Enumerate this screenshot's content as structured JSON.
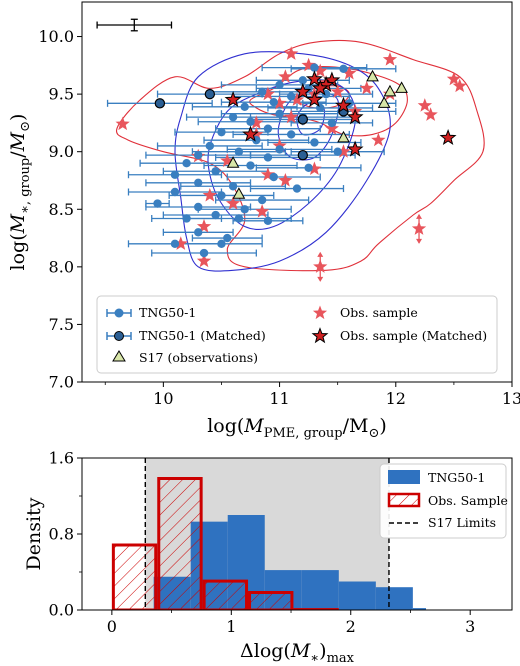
{
  "chart_data": [
    {
      "type": "scatter",
      "xlabel": "log(M_PME,group/M☉)",
      "ylabel": "log(M*,group/M☉)",
      "xlim": [
        9.3,
        13.0
      ],
      "ylim": [
        7.0,
        10.3
      ],
      "xticks": [
        "10",
        "11",
        "12",
        "13"
      ],
      "yticks": [
        "7.0",
        "7.5",
        "8.0",
        "8.5",
        "9.0",
        "9.5",
        "10.0"
      ],
      "legend": {
        "placement": "lower-center",
        "entries": [
          "TNG50-1",
          "TNG50-1 (Matched)",
          "S17 (observations)",
          "Obs. sample",
          "Obs. sample (Matched)"
        ]
      },
      "colors": {
        "tng": "#3a7fc0",
        "obs": "#e8555c",
        "matched_edge": "#000000",
        "s17": "#d8e6a8",
        "contour_red": "#e0303a",
        "contour_blue": "#3030d0"
      },
      "typical_error": {
        "x": 9.75,
        "y": 10.1,
        "xerr": 0.32,
        "yerr": 0.05
      },
      "series": [
        {
          "name": "TNG50-1",
          "points": [
            [
              11.3,
              9.73,
              0.45
            ],
            [
              11.55,
              9.72,
              0.45
            ],
            [
              11.2,
              9.62,
              0.4
            ],
            [
              11.0,
              9.58,
              0.5
            ],
            [
              11.25,
              9.55,
              0.45
            ],
            [
              10.85,
              9.52,
              0.45
            ],
            [
              11.4,
              9.5,
              0.4
            ],
            [
              11.1,
              9.48,
              0.5
            ],
            [
              10.95,
              9.43,
              0.45
            ],
            [
              11.6,
              9.42,
              0.4
            ],
            [
              10.7,
              9.39,
              0.45
            ],
            [
              11.35,
              9.38,
              0.45
            ],
            [
              11.0,
              9.33,
              0.5
            ],
            [
              10.6,
              9.3,
              0.4
            ],
            [
              11.2,
              9.3,
              0.45
            ],
            [
              10.75,
              9.26,
              0.45
            ],
            [
              11.45,
              9.25,
              0.35
            ],
            [
              10.9,
              9.2,
              0.45
            ],
            [
              10.5,
              9.17,
              0.4
            ],
            [
              11.1,
              9.15,
              0.5
            ],
            [
              10.8,
              9.1,
              0.45
            ],
            [
              11.3,
              9.08,
              0.4
            ],
            [
              10.4,
              9.05,
              0.45
            ],
            [
              11.0,
              9.02,
              0.45
            ],
            [
              10.65,
              9.0,
              0.4
            ],
            [
              11.5,
              9.0,
              0.4
            ],
            [
              10.3,
              8.97,
              0.45
            ],
            [
              10.9,
              8.95,
              0.45
            ],
            [
              10.2,
              8.9,
              0.4
            ],
            [
              10.75,
              8.88,
              0.4
            ],
            [
              11.25,
              8.86,
              0.45
            ],
            [
              10.45,
              8.83,
              0.45
            ],
            [
              10.1,
              8.8,
              0.4
            ],
            [
              10.95,
              8.78,
              0.4
            ],
            [
              10.3,
              8.73,
              0.45
            ],
            [
              10.6,
              8.7,
              0.45
            ],
            [
              11.15,
              8.68,
              0.4
            ],
            [
              10.1,
              8.65,
              0.4
            ],
            [
              10.5,
              8.62,
              0.45
            ],
            [
              10.85,
              8.58,
              0.4
            ],
            [
              9.95,
              8.55,
              0.1
            ],
            [
              10.3,
              8.52,
              0.45
            ],
            [
              10.7,
              8.5,
              0.4
            ],
            [
              10.45,
              8.45,
              0.45
            ],
            [
              10.2,
              8.42,
              0.3
            ],
            [
              10.65,
              8.42,
              0.45
            ],
            [
              10.9,
              8.4,
              0.3
            ],
            [
              10.3,
              8.3,
              0.3
            ],
            [
              10.55,
              8.25,
              0.3
            ],
            [
              10.1,
              8.2,
              0.4
            ],
            [
              10.5,
              8.2,
              0.35
            ],
            [
              10.35,
              8.12,
              0.45
            ]
          ]
        },
        {
          "name": "TNG50-1 (Matched)",
          "points": [
            [
              10.4,
              9.5,
              0.45
            ],
            [
              9.97,
              9.42,
              0.45
            ],
            [
              11.55,
              9.35,
              0.45
            ],
            [
              11.2,
              9.28,
              0.45
            ],
            [
              11.2,
              8.97,
              0.45
            ]
          ]
        },
        {
          "name": "S17 (observations)",
          "points": [
            [
              11.8,
              9.65
            ],
            [
              12.05,
              9.55
            ],
            [
              11.95,
              9.52
            ],
            [
              11.9,
              9.42
            ],
            [
              11.55,
              9.12
            ],
            [
              10.6,
              8.9
            ],
            [
              10.65,
              8.63
            ]
          ]
        },
        {
          "name": "Obs. sample",
          "points": [
            [
              11.1,
              9.85
            ],
            [
              11.95,
              9.8
            ],
            [
              11.25,
              9.75
            ],
            [
              11.35,
              9.7
            ],
            [
              11.6,
              9.68
            ],
            [
              11.05,
              9.65
            ],
            [
              12.5,
              9.63
            ],
            [
              12.55,
              9.57
            ],
            [
              11.4,
              9.6
            ],
            [
              11.75,
              9.55
            ],
            [
              11.5,
              9.52
            ],
            [
              10.9,
              9.5
            ],
            [
              11.3,
              9.5
            ],
            [
              11.95,
              9.5
            ],
            [
              11.15,
              9.45
            ],
            [
              11.0,
              9.42
            ],
            [
              12.25,
              9.4
            ],
            [
              11.55,
              9.4
            ],
            [
              11.65,
              9.35
            ],
            [
              12.3,
              9.32
            ],
            [
              11.1,
              9.3
            ],
            [
              10.8,
              9.25
            ],
            [
              9.65,
              9.24
            ],
            [
              11.45,
              9.2
            ],
            [
              10.8,
              9.15
            ],
            [
              11.85,
              9.1
            ],
            [
              11.0,
              9.05
            ],
            [
              11.55,
              9.0
            ],
            [
              10.3,
              8.96
            ],
            [
              10.55,
              8.92
            ],
            [
              11.3,
              8.85
            ],
            [
              10.9,
              8.8
            ],
            [
              11.05,
              8.75
            ],
            [
              10.4,
              8.62
            ],
            [
              10.6,
              8.55
            ],
            [
              10.85,
              8.48
            ],
            [
              10.35,
              8.35
            ],
            [
              10.15,
              8.2
            ],
            [
              10.35,
              8.05
            ]
          ]
        },
        {
          "name": "Obs. sample (Matched)",
          "points": [
            [
              11.3,
              9.63
            ],
            [
              11.45,
              9.62
            ],
            [
              11.4,
              9.58
            ],
            [
              11.35,
              9.55
            ],
            [
              11.2,
              9.52
            ],
            [
              10.6,
              9.45
            ],
            [
              11.3,
              9.45
            ],
            [
              11.55,
              9.4
            ],
            [
              11.65,
              9.3
            ],
            [
              10.75,
              9.15
            ],
            [
              11.65,
              9.02
            ],
            [
              12.45,
              9.12
            ]
          ]
        },
        {
          "name": "Obs. sample upper limits",
          "points": [
            [
              12.2,
              8.33
            ],
            [
              11.35,
              8.0
            ]
          ]
        }
      ],
      "contours": [
        {
          "color": "red",
          "points": [
            [
              9.6,
              9.2
            ],
            [
              9.8,
              9.45
            ],
            [
              10.1,
              9.65
            ],
            [
              10.4,
              9.55
            ],
            [
              10.7,
              9.65
            ],
            [
              11.0,
              9.85
            ],
            [
              11.3,
              9.95
            ],
            [
              11.7,
              9.95
            ],
            [
              12.15,
              9.8
            ],
            [
              12.55,
              9.65
            ],
            [
              12.7,
              9.35
            ],
            [
              12.75,
              9.0
            ],
            [
              12.5,
              8.75
            ],
            [
              12.3,
              8.55
            ],
            [
              12.15,
              8.45
            ],
            [
              11.85,
              8.2
            ],
            [
              11.7,
              8.05
            ],
            [
              11.4,
              7.97
            ],
            [
              10.7,
              8.0
            ],
            [
              10.55,
              8.15
            ],
            [
              10.7,
              8.4
            ],
            [
              10.6,
              8.7
            ],
            [
              10.4,
              8.9
            ],
            [
              10.0,
              9.0
            ],
            [
              9.7,
              9.1
            ]
          ]
        },
        {
          "color": "red",
          "points": [
            [
              10.75,
              9.45
            ],
            [
              10.95,
              9.55
            ],
            [
              11.2,
              9.72
            ],
            [
              11.6,
              9.72
            ],
            [
              12.0,
              9.6
            ],
            [
              12.1,
              9.45
            ],
            [
              12.0,
              9.25
            ],
            [
              11.8,
              9.15
            ],
            [
              11.55,
              9.15
            ],
            [
              11.35,
              9.25
            ],
            [
              11.15,
              9.3
            ],
            [
              10.95,
              9.32
            ],
            [
              10.8,
              9.38
            ]
          ]
        },
        {
          "color": "red",
          "points": [
            [
              11.15,
              9.45
            ],
            [
              11.3,
              9.55
            ],
            [
              11.5,
              9.57
            ],
            [
              11.6,
              9.5
            ],
            [
              11.5,
              9.4
            ],
            [
              11.3,
              9.38
            ]
          ]
        },
        {
          "color": "blue",
          "points": [
            [
              10.15,
              9.3
            ],
            [
              10.3,
              9.65
            ],
            [
              10.7,
              9.85
            ],
            [
              11.2,
              9.85
            ],
            [
              11.6,
              9.75
            ],
            [
              11.85,
              9.55
            ],
            [
              11.95,
              9.2
            ],
            [
              11.75,
              8.75
            ],
            [
              11.4,
              8.3
            ],
            [
              11.0,
              8.05
            ],
            [
              10.6,
              7.97
            ],
            [
              10.3,
              8.0
            ],
            [
              10.2,
              8.25
            ],
            [
              10.15,
              8.6
            ],
            [
              10.1,
              9.0
            ]
          ]
        },
        {
          "color": "blue",
          "points": [
            [
              10.4,
              9.05
            ],
            [
              10.55,
              9.35
            ],
            [
              10.8,
              9.5
            ],
            [
              11.1,
              9.6
            ],
            [
              11.4,
              9.62
            ],
            [
              11.6,
              9.5
            ],
            [
              11.65,
              9.25
            ],
            [
              11.5,
              8.85
            ],
            [
              11.25,
              8.55
            ],
            [
              10.95,
              8.35
            ],
            [
              10.7,
              8.35
            ],
            [
              10.5,
              8.55
            ],
            [
              10.4,
              8.8
            ]
          ]
        },
        {
          "color": "blue",
          "points": [
            [
              11.0,
              9.25
            ],
            [
              11.1,
              9.45
            ],
            [
              11.3,
              9.52
            ],
            [
              11.5,
              9.45
            ],
            [
              11.45,
              9.15
            ],
            [
              11.3,
              8.95
            ],
            [
              11.1,
              8.95
            ],
            [
              11.0,
              9.1
            ]
          ]
        },
        {
          "color": "blue",
          "points": [
            [
              11.15,
              9.3
            ],
            [
              11.25,
              9.42
            ],
            [
              11.38,
              9.38
            ],
            [
              11.35,
              9.2
            ],
            [
              11.2,
              9.15
            ]
          ]
        }
      ]
    },
    {
      "type": "bar",
      "xlabel": "Δlog(M*)max",
      "ylabel": "Density",
      "xlim": [
        -0.25,
        3.35
      ],
      "ylim": [
        0,
        1.6
      ],
      "xticks": [
        "0",
        "1",
        "2",
        "3"
      ],
      "yticks": [
        "0.0",
        "0.8",
        "1.6"
      ],
      "legend": {
        "placement": "top-right",
        "entries": [
          "TNG50-1",
          "Obs. Sample",
          "S17 Limits"
        ]
      },
      "s17_limits": [
        0.28,
        2.32
      ],
      "colors": {
        "tng": "#2f72c0",
        "obs_edge": "#cc0000",
        "shade": "#d9d9d9"
      },
      "series": [
        {
          "name": "TNG50-1",
          "edges": [
            0.35,
            0.66,
            0.97,
            1.28,
            1.59,
            1.9,
            2.21,
            2.52,
            2.63
          ],
          "values": [
            0.35,
            0.93,
            1.0,
            0.42,
            0.42,
            0.3,
            0.24,
            0.02
          ]
        },
        {
          "name": "Obs. Sample",
          "edges": [
            0.0,
            0.38,
            0.76,
            1.14,
            1.52,
            1.9,
            2.28,
            2.66,
            3.04
          ],
          "values": [
            0.7,
            1.4,
            0.32,
            0.2,
            0.02,
            0.0,
            0.0,
            0.0
          ]
        }
      ]
    }
  ]
}
